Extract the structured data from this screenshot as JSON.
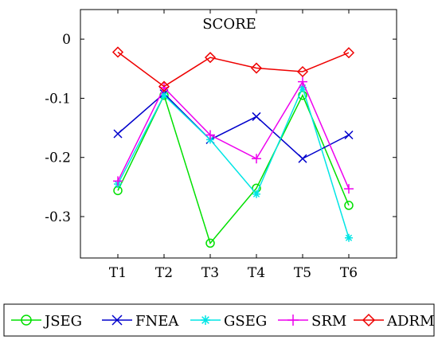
{
  "chart_data": {
    "type": "line",
    "title": "SCORE",
    "xlabel": "",
    "ylabel": "",
    "categories": [
      "T1",
      "T2",
      "T3",
      "T4",
      "T5",
      "T6"
    ],
    "ylim": [
      -0.37,
      0.05
    ],
    "yticks": [
      0,
      -0.1,
      -0.2,
      -0.3
    ],
    "ytick_labels": [
      "0",
      "-0.1",
      "-0.2",
      "-0.3"
    ],
    "grid": false,
    "legend_position": "bottom",
    "series": [
      {
        "name": "JSEG",
        "color": "#00e000",
        "marker": "circle",
        "values": [
          -0.256,
          -0.095,
          -0.345,
          -0.252,
          -0.095,
          -0.281
        ]
      },
      {
        "name": "FNEA",
        "color": "#0000cc",
        "marker": "x",
        "values": [
          -0.16,
          -0.092,
          -0.17,
          -0.131,
          -0.202,
          -0.162
        ]
      },
      {
        "name": "GSEG",
        "color": "#00e5e5",
        "marker": "asterisk",
        "values": [
          -0.245,
          -0.095,
          -0.17,
          -0.262,
          -0.082,
          -0.336
        ]
      },
      {
        "name": "SRM",
        "color": "#ee00ee",
        "marker": "plus",
        "values": [
          -0.24,
          -0.082,
          -0.162,
          -0.202,
          -0.072,
          -0.253
        ]
      },
      {
        "name": "ADRM",
        "color": "#ee0000",
        "marker": "diamond",
        "values": [
          -0.022,
          -0.08,
          -0.031,
          -0.049,
          -0.055,
          -0.023
        ]
      }
    ]
  }
}
